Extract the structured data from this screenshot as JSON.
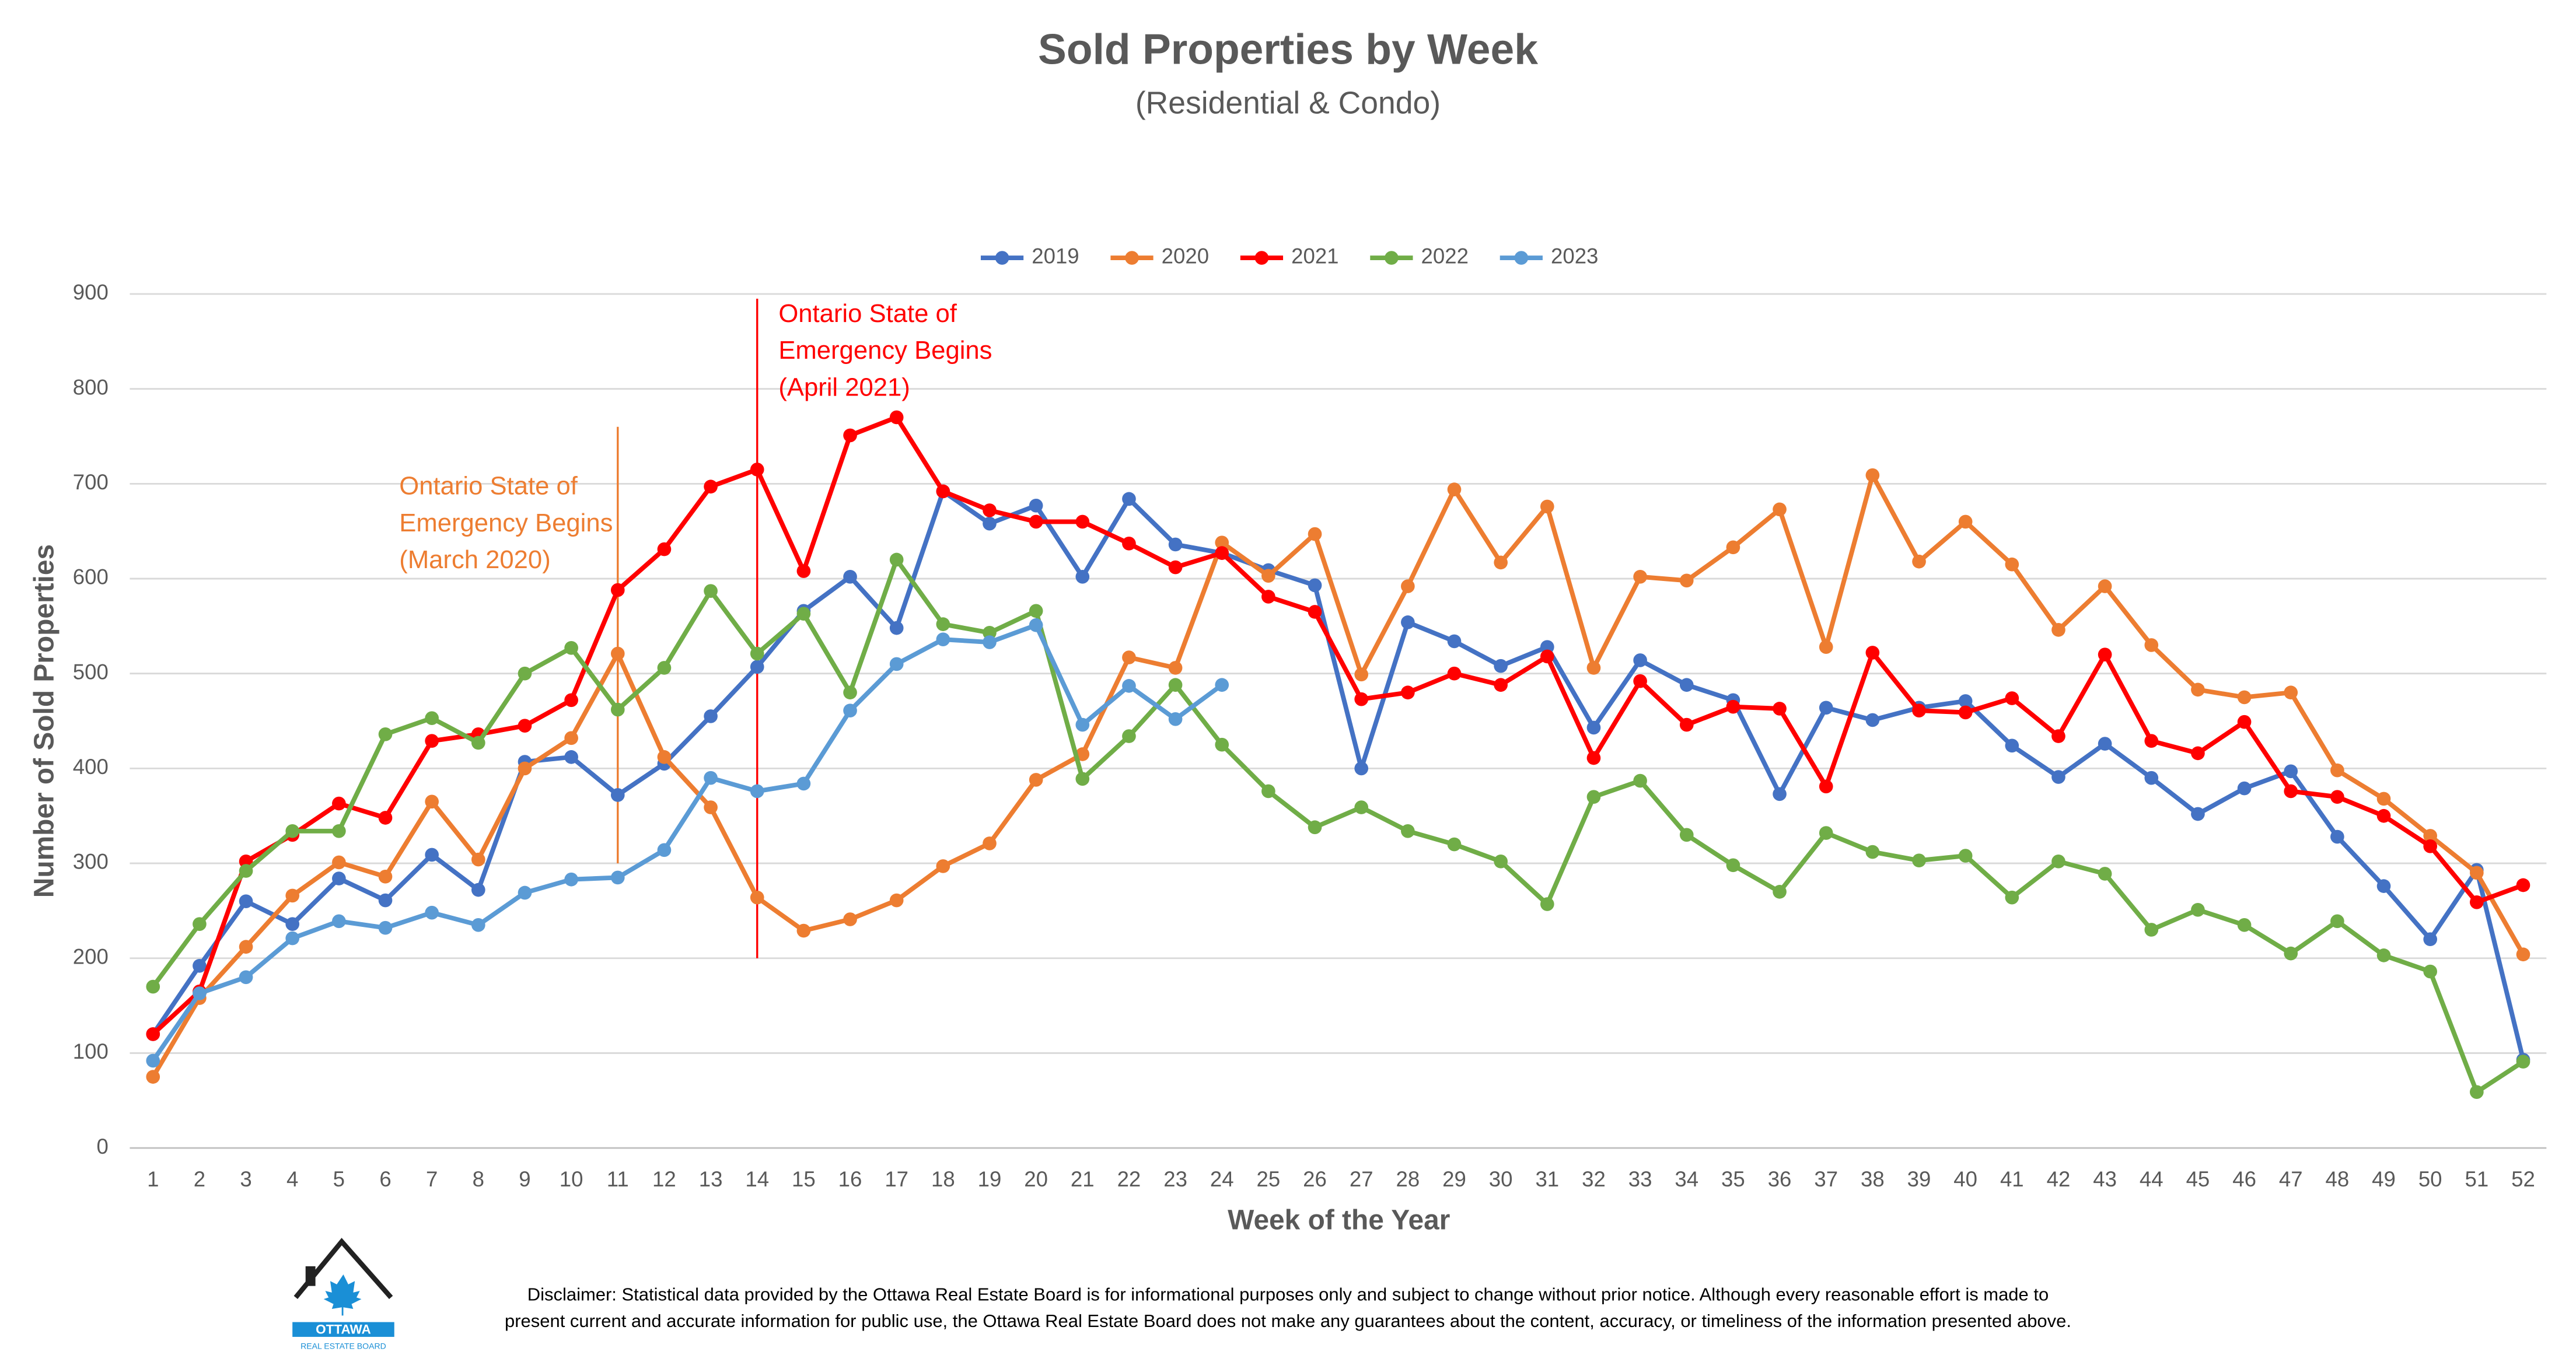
{
  "chart_data": {
    "type": "line",
    "title": "Sold Properties by Week",
    "subtitle": "(Residential & Condo)",
    "x_label": "Week of the Year",
    "y_label": "Number of Sold Properties",
    "x": [
      1,
      2,
      3,
      4,
      5,
      6,
      7,
      8,
      9,
      10,
      11,
      12,
      13,
      14,
      15,
      16,
      17,
      18,
      19,
      20,
      21,
      22,
      23,
      24,
      25,
      26,
      27,
      28,
      29,
      30,
      31,
      32,
      33,
      34,
      35,
      36,
      37,
      38,
      39,
      40,
      41,
      42,
      43,
      44,
      45,
      46,
      47,
      48,
      49,
      50,
      51,
      52
    ],
    "xlim": [
      0.5,
      52.5
    ],
    "ylim": [
      0,
      900
    ],
    "yticks": [
      0,
      100,
      200,
      300,
      400,
      500,
      600,
      700,
      800,
      900
    ],
    "grid": true,
    "legend": "top",
    "series": [
      {
        "name": "2019",
        "color": "#4472c4",
        "values": [
          120,
          192,
          260,
          236,
          284,
          261,
          309,
          272,
          407,
          412,
          372,
          405,
          455,
          507,
          566,
          602,
          548,
          692,
          658,
          677,
          602,
          684,
          636,
          627,
          609,
          593,
          400,
          554,
          534,
          508,
          528,
          443,
          514,
          488,
          472,
          373,
          464,
          451,
          464,
          471,
          424,
          391,
          426,
          390,
          352,
          379,
          397,
          328,
          276,
          220,
          293,
          93
        ]
      },
      {
        "name": "2020",
        "color": "#ed7d31",
        "values": [
          75,
          158,
          212,
          266,
          301,
          286,
          365,
          304,
          400,
          432,
          521,
          412,
          359,
          264,
          229,
          241,
          261,
          297,
          321,
          388,
          415,
          517,
          506,
          638,
          603,
          647,
          499,
          592,
          694,
          617,
          676,
          506,
          602,
          598,
          633,
          673,
          528,
          709,
          618,
          660,
          615,
          546,
          592,
          530,
          483,
          475,
          480,
          398,
          368,
          329,
          290,
          204
        ]
      },
      {
        "name": "2021",
        "color": "#ff0000",
        "values": [
          120,
          165,
          302,
          330,
          363,
          348,
          429,
          436,
          445,
          472,
          588,
          631,
          697,
          715,
          608,
          751,
          770,
          692,
          672,
          660,
          660,
          637,
          612,
          627,
          581,
          565,
          473,
          480,
          500,
          488,
          518,
          411,
          492,
          446,
          465,
          463,
          381,
          522,
          461,
          459,
          474,
          434,
          520,
          429,
          416,
          449,
          376,
          370,
          350,
          318,
          259,
          277
        ]
      },
      {
        "name": "2022",
        "color": "#70ad47",
        "values": [
          170,
          236,
          292,
          334,
          334,
          436,
          453,
          427,
          500,
          527,
          462,
          506,
          587,
          521,
          563,
          480,
          620,
          552,
          543,
          566,
          389,
          434,
          488,
          425,
          376,
          338,
          359,
          334,
          320,
          302,
          257,
          370,
          387,
          330,
          298,
          270,
          332,
          312,
          303,
          308,
          264,
          302,
          289,
          230,
          251,
          235,
          205,
          239,
          203,
          186,
          59,
          91
        ]
      },
      {
        "name": "2023",
        "color": "#5b9bd5",
        "values": [
          92,
          163,
          180,
          221,
          239,
          232,
          248,
          235,
          269,
          283,
          285,
          314,
          390,
          376,
          384,
          461,
          510,
          536,
          533,
          551,
          446,
          487,
          452,
          488,
          null,
          null,
          null,
          null,
          null,
          null,
          null,
          null,
          null,
          null,
          null,
          null,
          null,
          null,
          null,
          null,
          null,
          null,
          null,
          null,
          null,
          null,
          null,
          null,
          null,
          null,
          null,
          null
        ]
      }
    ],
    "annotations": [
      {
        "lines": [
          "Ontario State of",
          "Emergency Begins",
          "(March 2020)"
        ],
        "color": "#ed7d31",
        "x": 11,
        "y": [
          300,
          760
        ]
      },
      {
        "lines": [
          "Ontario State of",
          "Emergency Begins",
          "(April 2021)"
        ],
        "color": "#ff0000",
        "x": 14,
        "y": [
          200,
          895
        ]
      }
    ]
  },
  "footer": {
    "logo": {
      "name": "OTTAWA",
      "tagline": "REAL ESTATE BOARD"
    },
    "disclaimer": [
      "Disclaimer: Statistical data provided by the Ottawa Real Estate Board is for informational purposes only and subject to change without prior notice. Although every reasonable effort is made to",
      "present current and accurate information for public use, the Ottawa Real Estate Board does not make any guarantees about the content, accuracy, or timeliness of the information presented above."
    ]
  }
}
